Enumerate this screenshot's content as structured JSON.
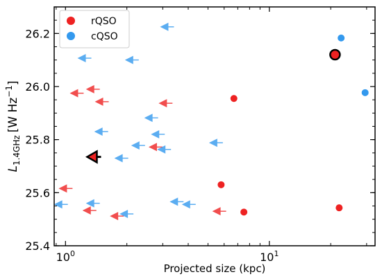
{
  "chart_data": {
    "type": "scatter",
    "x_scale": "log",
    "xlabel": "Projected size (kpc)",
    "ylabel_main": "L",
    "ylabel_sub": "1.4GHz",
    "ylabel_unit_open": "[W Hz",
    "ylabel_unit_exp": "−1",
    "ylabel_unit_close": "]",
    "xlim": [
      0.88,
      33
    ],
    "ylim": [
      25.4,
      26.3
    ],
    "x_ticks": [
      {
        "value": 1,
        "base": "10",
        "exp": "0"
      },
      {
        "value": 10,
        "base": "10",
        "exp": "1"
      }
    ],
    "y_ticks": [
      25.4,
      25.6,
      25.8,
      26.0,
      26.2
    ],
    "y_tick_labels": [
      "25.4",
      "25.6",
      "25.8",
      "26.0",
      "26.2"
    ],
    "legend": {
      "placement": "top-left",
      "entries": [
        {
          "label": "rQSO",
          "color": "#ee2222"
        },
        {
          "label": "cQSO",
          "color": "#3399ee"
        }
      ]
    },
    "colors": {
      "rQSO": "#ee2222",
      "cQSO": "#3399ee",
      "highlight_edge": "#000000"
    },
    "series": [
      {
        "name": "rQSO",
        "color": "#ee2222",
        "measured": [
          {
            "x": 6.7,
            "y": 25.955
          },
          {
            "x": 5.8,
            "y": 25.63
          },
          {
            "x": 7.5,
            "y": 25.527
          },
          {
            "x": 22.0,
            "y": 25.543
          }
        ],
        "upper_limits": [
          {
            "x": 1.32,
            "y": 25.99
          },
          {
            "x": 1.1,
            "y": 25.975
          },
          {
            "x": 1.46,
            "y": 25.943
          },
          {
            "x": 3.0,
            "y": 25.937
          },
          {
            "x": 2.68,
            "y": 25.772
          },
          {
            "x": 0.97,
            "y": 25.616
          },
          {
            "x": 1.27,
            "y": 25.533
          },
          {
            "x": 1.73,
            "y": 25.512
          },
          {
            "x": 5.5,
            "y": 25.53
          }
        ],
        "highlight": [
          {
            "x": 21.0,
            "y": 26.12,
            "kind": "measured"
          }
        ]
      },
      {
        "name": "cQSO",
        "color": "#3399ee",
        "measured": [
          {
            "x": 22.5,
            "y": 26.183
          },
          {
            "x": 29.5,
            "y": 25.977
          }
        ],
        "upper_limits": [
          {
            "x": 3.05,
            "y": 26.225
          },
          {
            "x": 1.2,
            "y": 26.107
          },
          {
            "x": 2.05,
            "y": 26.1
          },
          {
            "x": 2.55,
            "y": 25.882
          },
          {
            "x": 1.45,
            "y": 25.83
          },
          {
            "x": 2.75,
            "y": 25.82
          },
          {
            "x": 5.3,
            "y": 25.788
          },
          {
            "x": 2.2,
            "y": 25.778
          },
          {
            "x": 2.95,
            "y": 25.763
          },
          {
            "x": 1.82,
            "y": 25.73
          },
          {
            "x": 0.92,
            "y": 25.556
          },
          {
            "x": 1.32,
            "y": 25.56
          },
          {
            "x": 3.4,
            "y": 25.566
          },
          {
            "x": 3.9,
            "y": 25.556
          },
          {
            "x": 1.93,
            "y": 25.52
          }
        ]
      },
      {
        "name": "",
        "color": "#ee2222",
        "upper_limits_highlight": [
          {
            "x": 1.36,
            "y": 25.735
          }
        ]
      }
    ]
  }
}
